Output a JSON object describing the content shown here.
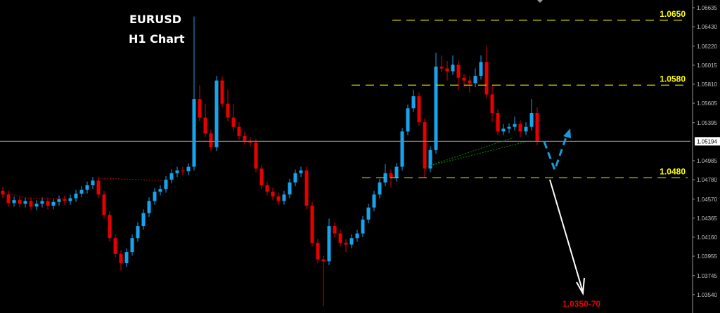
{
  "chart_data": {
    "type": "candlestick",
    "title": "EURUSD",
    "subtitle": "H1 Chart",
    "symbol": "EURUSD",
    "timeframe": "H1",
    "ylim": [
      1.0333,
      1.0671
    ],
    "y_ticks": [
      "1.06635",
      "1.06430",
      "1.06220",
      "1.06015",
      "1.05810",
      "1.05605",
      "1.05395",
      "1.04985",
      "1.04780",
      "1.04570",
      "1.04365",
      "1.04160",
      "1.03955",
      "1.03745",
      "1.03540"
    ],
    "current_price": "1.05194",
    "grid": false,
    "colors": {
      "bull": "#18a4ec",
      "bear": "#e60000",
      "background": "#000000",
      "level": "#c8c800",
      "price_line": "#808080",
      "target": "#e60000"
    },
    "levels": [
      {
        "label": "1.0650",
        "price": 1.065
      },
      {
        "label": "1.0580",
        "price": 1.058
      },
      {
        "label": "1.0480",
        "price": 1.048
      }
    ],
    "target_label": "1.0350-70",
    "candles_ohlc": [
      [
        1.0466,
        1.047,
        1.0458,
        1.0462
      ],
      [
        1.0462,
        1.0466,
        1.0449,
        1.0453
      ],
      [
        1.0453,
        1.046,
        1.0449,
        1.0456
      ],
      [
        1.0456,
        1.046,
        1.0448,
        1.0452
      ],
      [
        1.0452,
        1.0459,
        1.0448,
        1.0455
      ],
      [
        1.0455,
        1.0459,
        1.0445,
        1.0449
      ],
      [
        1.0449,
        1.0456,
        1.0445,
        1.0452
      ],
      [
        1.0452,
        1.0459,
        1.0448,
        1.0455
      ],
      [
        1.0455,
        1.0459,
        1.0446,
        1.045
      ],
      [
        1.045,
        1.0458,
        1.0446,
        1.0454
      ],
      [
        1.0454,
        1.0461,
        1.045,
        1.0457
      ],
      [
        1.0457,
        1.0461,
        1.0451,
        1.0455
      ],
      [
        1.0455,
        1.0462,
        1.0451,
        1.0458
      ],
      [
        1.0458,
        1.0467,
        1.0454,
        1.0463
      ],
      [
        1.0463,
        1.0471,
        1.0459,
        1.0467
      ],
      [
        1.0467,
        1.0476,
        1.0463,
        1.0472
      ],
      [
        1.0472,
        1.0481,
        1.0468,
        1.0477
      ],
      [
        1.0477,
        1.0481,
        1.0458,
        1.0462
      ],
      [
        1.0462,
        1.0466,
        1.0436,
        1.044
      ],
      [
        1.044,
        1.0444,
        1.0411,
        1.0415
      ],
      [
        1.0415,
        1.0419,
        1.0394,
        1.0398
      ],
      [
        1.0398,
        1.0402,
        1.038,
        1.0388
      ],
      [
        1.0388,
        1.0404,
        1.0384,
        1.04
      ],
      [
        1.04,
        1.0419,
        1.0396,
        1.0415
      ],
      [
        1.0415,
        1.0432,
        1.0411,
        1.0428
      ],
      [
        1.0428,
        1.0446,
        1.0424,
        1.0442
      ],
      [
        1.0442,
        1.0459,
        1.0438,
        1.0455
      ],
      [
        1.0455,
        1.0469,
        1.0451,
        1.0465
      ],
      [
        1.0465,
        1.0472,
        1.0461,
        1.0468
      ],
      [
        1.0468,
        1.0482,
        1.0464,
        1.0478
      ],
      [
        1.0478,
        1.0489,
        1.0474,
        1.0485
      ],
      [
        1.0485,
        1.0492,
        1.0481,
        1.0488
      ],
      [
        1.0488,
        1.0492,
        1.0483,
        1.0487
      ],
      [
        1.0487,
        1.0496,
        1.0483,
        1.0492
      ],
      [
        1.0492,
        1.0654,
        1.0488,
        1.0565
      ],
      [
        1.0565,
        1.058,
        1.0541,
        1.0545
      ],
      [
        1.0545,
        1.056,
        1.0524,
        1.0528
      ],
      [
        1.0528,
        1.0532,
        1.0509,
        1.0513
      ],
      [
        1.0513,
        1.059,
        1.0509,
        1.0585
      ],
      [
        1.0585,
        1.0589,
        1.0556,
        1.056
      ],
      [
        1.056,
        1.0575,
        1.0541,
        1.0545
      ],
      [
        1.0545,
        1.056,
        1.0531,
        1.0535
      ],
      [
        1.0535,
        1.054,
        1.0521,
        1.0525
      ],
      [
        1.0525,
        1.053,
        1.0516,
        1.052
      ],
      [
        1.052,
        1.0524,
        1.0514,
        1.0518
      ],
      [
        1.0518,
        1.0522,
        1.0486,
        1.049
      ],
      [
        1.049,
        1.0494,
        1.0468,
        1.0472
      ],
      [
        1.0472,
        1.0476,
        1.0461,
        1.0465
      ],
      [
        1.0465,
        1.0469,
        1.0456,
        1.046
      ],
      [
        1.046,
        1.0464,
        1.0451,
        1.0455
      ],
      [
        1.0455,
        1.0466,
        1.0451,
        1.0462
      ],
      [
        1.0462,
        1.0479,
        1.0458,
        1.0475
      ],
      [
        1.0475,
        1.0489,
        1.0471,
        1.0485
      ],
      [
        1.0485,
        1.0492,
        1.0481,
        1.0488
      ],
      [
        1.0488,
        1.0492,
        1.0446,
        1.045
      ],
      [
        1.045,
        1.0454,
        1.0406,
        1.041
      ],
      [
        1.041,
        1.0414,
        1.0388,
        1.0392
      ],
      [
        1.0392,
        1.0396,
        1.0342,
        1.039
      ],
      [
        1.039,
        1.0436,
        1.0386,
        1.0428
      ],
      [
        1.0428,
        1.0432,
        1.0416,
        1.042
      ],
      [
        1.042,
        1.0424,
        1.0406,
        1.041
      ],
      [
        1.041,
        1.0414,
        1.04,
        1.0408
      ],
      [
        1.0408,
        1.0419,
        1.0404,
        1.0415
      ],
      [
        1.0415,
        1.0424,
        1.0411,
        1.042
      ],
      [
        1.042,
        1.0439,
        1.0416,
        1.0435
      ],
      [
        1.0435,
        1.0452,
        1.0431,
        1.0448
      ],
      [
        1.0448,
        1.0466,
        1.0444,
        1.0462
      ],
      [
        1.0462,
        1.0479,
        1.0458,
        1.0475
      ],
      [
        1.0475,
        1.0495,
        1.0471,
        1.0485
      ],
      [
        1.0485,
        1.0489,
        1.047,
        1.048
      ],
      [
        1.048,
        1.0496,
        1.0476,
        1.0492
      ],
      [
        1.0492,
        1.0534,
        1.0488,
        1.053
      ],
      [
        1.053,
        1.0559,
        1.0526,
        1.0555
      ],
      [
        1.0555,
        1.0575,
        1.0551,
        1.0568
      ],
      [
        1.0568,
        1.0572,
        1.0536,
        1.054
      ],
      [
        1.054,
        1.0544,
        1.048,
        1.049
      ],
      [
        1.049,
        1.0514,
        1.0486,
        1.051
      ],
      [
        1.051,
        1.0615,
        1.0506,
        1.06
      ],
      [
        1.06,
        1.0612,
        1.0594,
        1.0598
      ],
      [
        1.0598,
        1.0606,
        1.0585,
        1.0595
      ],
      [
        1.0595,
        1.0612,
        1.0591,
        1.0602
      ],
      [
        1.0602,
        1.0606,
        1.0575,
        1.0588
      ],
      [
        1.0588,
        1.0592,
        1.0578,
        1.0585
      ],
      [
        1.0585,
        1.059,
        1.0572,
        1.0582
      ],
      [
        1.0582,
        1.0598,
        1.0578,
        1.059
      ],
      [
        1.059,
        1.0612,
        1.0586,
        1.0605
      ],
      [
        1.0605,
        1.0622,
        1.0566,
        1.057
      ],
      [
        1.057,
        1.058,
        1.054,
        1.055
      ],
      [
        1.055,
        1.0554,
        1.0526,
        1.053
      ],
      [
        1.053,
        1.0538,
        1.0526,
        1.0533
      ],
      [
        1.0533,
        1.0539,
        1.0528,
        1.0535
      ],
      [
        1.0535,
        1.0546,
        1.0531,
        1.0538
      ],
      [
        1.0538,
        1.0542,
        1.0524,
        1.053
      ],
      [
        1.053,
        1.054,
        1.0526,
        1.0535
      ],
      [
        1.0535,
        1.0565,
        1.0531,
        1.055
      ],
      [
        1.055,
        1.0556,
        1.0515,
        1.0519
      ]
    ]
  }
}
